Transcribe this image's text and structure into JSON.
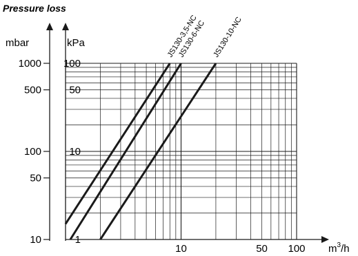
{
  "chart_data": {
    "type": "line",
    "title": "Pressure loss",
    "x_axis": {
      "unit_label": "m³/h",
      "unit_base": "m",
      "unit_exp": "3",
      "unit_tail": "/h",
      "scale": "log",
      "range": [
        1,
        100
      ],
      "tick_labels": [
        {
          "value": 10,
          "label": "10"
        },
        {
          "value": 50,
          "label": "50"
        },
        {
          "value": 100,
          "label": "100"
        }
      ]
    },
    "y_axis_mbar": {
      "unit_label": "mbar",
      "scale": "log",
      "range": [
        10,
        1000
      ],
      "tick_labels": [
        {
          "value": 1000,
          "label": "1000"
        },
        {
          "value": 500,
          "label": "500"
        },
        {
          "value": 100,
          "label": "100"
        },
        {
          "value": 50,
          "label": "50"
        },
        {
          "value": 10,
          "label": "10"
        }
      ]
    },
    "y_axis_kpa": {
      "unit_label": "kPa",
      "scale": "log",
      "range": [
        1,
        100
      ],
      "tick_labels": [
        {
          "value": 100,
          "label": "100"
        },
        {
          "value": 50,
          "label": "50"
        },
        {
          "value": 10,
          "label": "10"
        },
        {
          "value": 1,
          "label": "1"
        }
      ]
    },
    "grid": true,
    "series": [
      {
        "name": "JS130-3,5-NC",
        "points": [
          {
            "x": 1.0,
            "y_kpa": 1.5
          },
          {
            "x": 8.0,
            "y_kpa": 100
          }
        ]
      },
      {
        "name": "JS130-6-NC",
        "points": [
          {
            "x": 1.1,
            "y_kpa": 1.0
          },
          {
            "x": 10.0,
            "y_kpa": 100
          }
        ]
      },
      {
        "name": "JS130-10-NC",
        "points": [
          {
            "x": 2.0,
            "y_kpa": 1.0
          },
          {
            "x": 20.0,
            "y_kpa": 100
          }
        ]
      }
    ]
  }
}
